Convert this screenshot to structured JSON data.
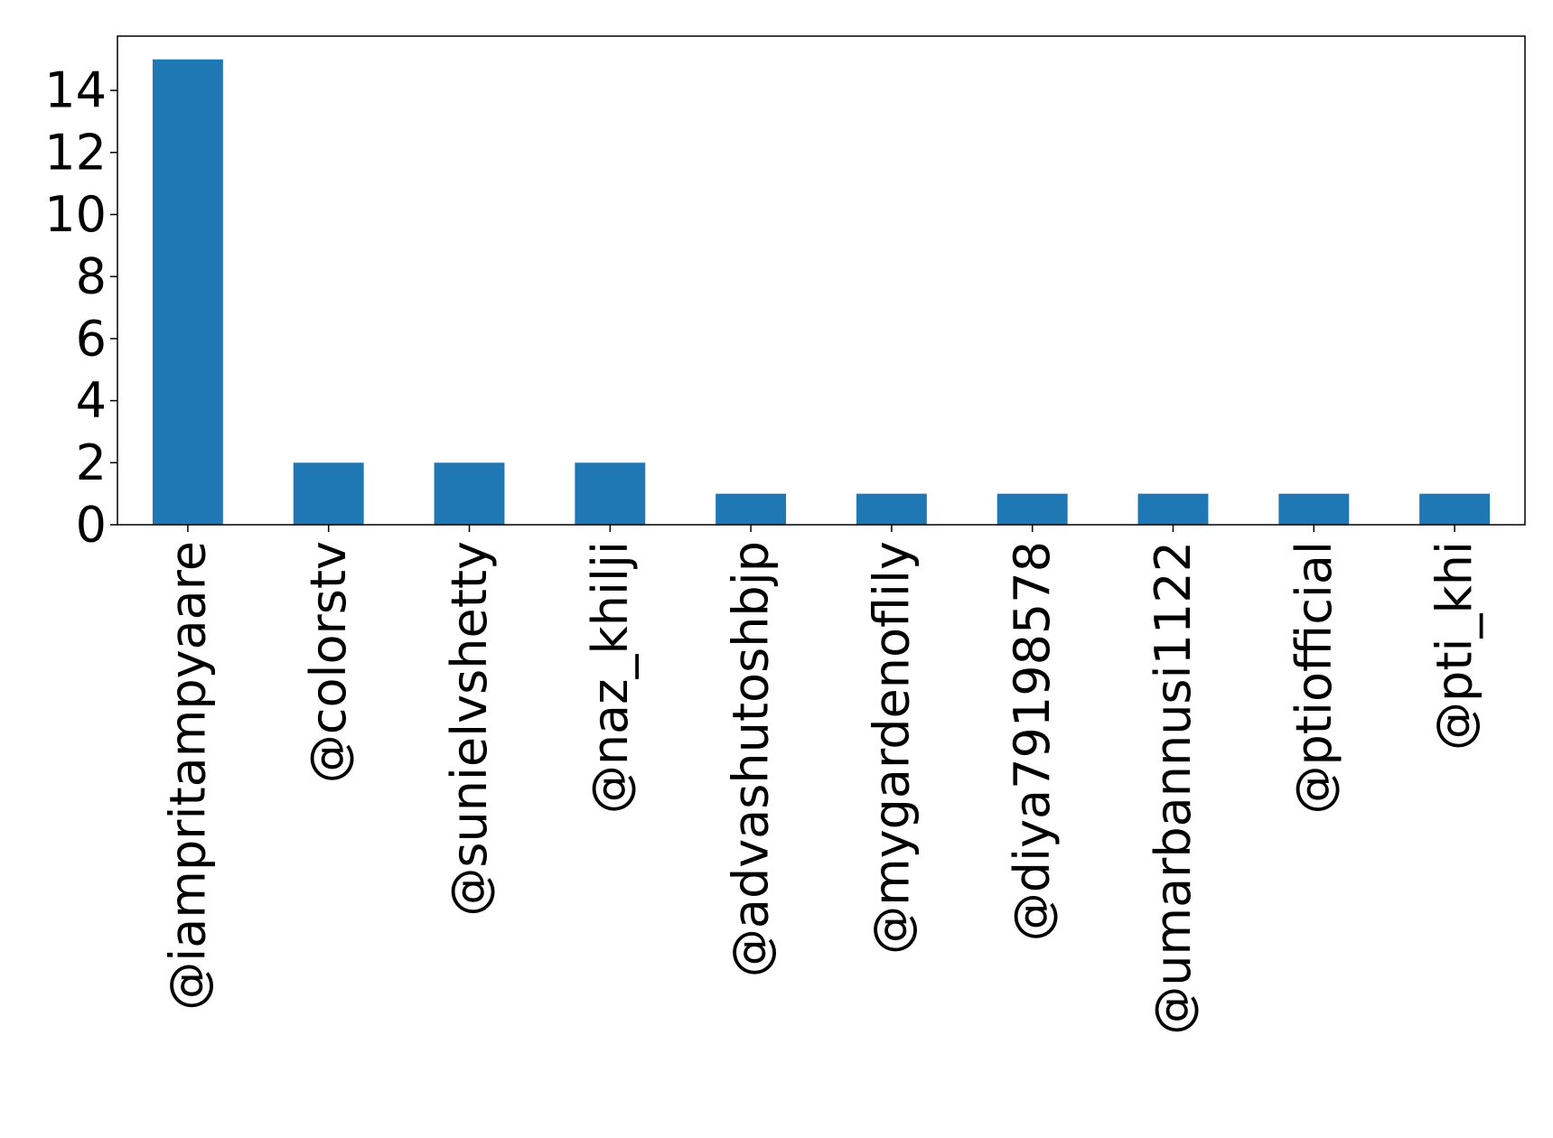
{
  "chart_data": {
    "type": "bar",
    "title": "",
    "xlabel": "",
    "ylabel": "",
    "categories": [
      "@iampritampyaare",
      "@colorstv",
      "@sunielvshetty",
      "@naz_khilji",
      "@advashutoshbjp",
      "@mygardenoflily",
      "@diya79198578",
      "@umarbannusi1122",
      "@ptiofficial",
      "@pti_khi"
    ],
    "values": [
      15,
      2,
      2,
      2,
      1,
      1,
      1,
      1,
      1,
      1
    ],
    "ylim": [
      0,
      15.75
    ],
    "yticks": [
      0,
      2,
      4,
      6,
      8,
      10,
      12,
      14
    ],
    "grid": false,
    "legend": "none",
    "colors": {
      "bar": "#1f77b4",
      "axis": "#000000"
    }
  }
}
